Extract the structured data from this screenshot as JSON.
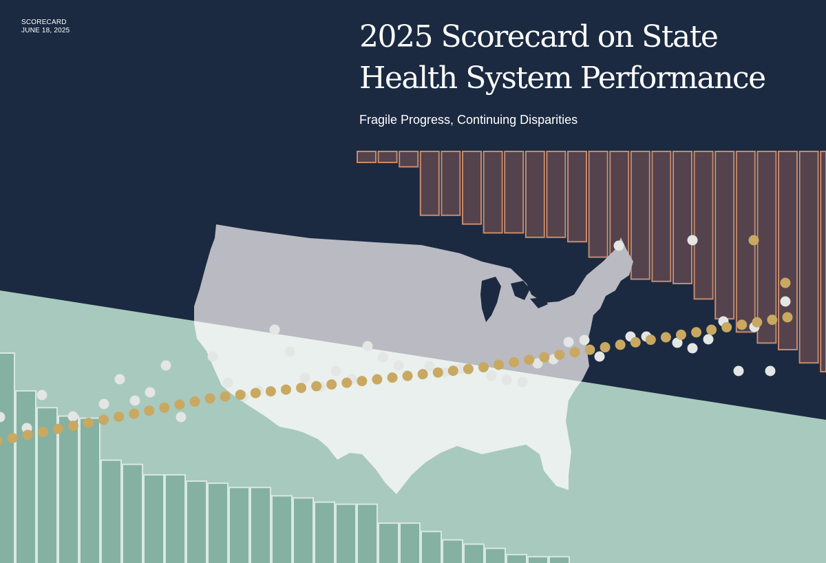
{
  "header": {
    "kicker": "SCORECARD",
    "date": "JUNE 18, 2025",
    "title_line1": "2025 Scorecard on State",
    "title_line2": "Health System Performance",
    "subtitle": "Fragile Progress, Continuing Disparities"
  },
  "colors": {
    "navy_background": "#1b2a41",
    "mint_background": "#a8c9bd",
    "mint_bar_fill": "#85b1a2",
    "mauve_bar_fill": "#54434d",
    "copper_bar_outline": "#c98a6c",
    "gold_dot": "#c9a862",
    "white_dot": "#e3e6e4",
    "map_upper": "#babac2",
    "map_lower": "#eaf0ed"
  },
  "artwork": {
    "description_icons": [
      "us-map-silhouette",
      "decorative-bar-chart",
      "decorative-dot-trend"
    ],
    "top_bar_levels": [
      0.05,
      0.05,
      0.07,
      0.29,
      0.29,
      0.33,
      0.37,
      0.37,
      0.39,
      0.39,
      0.41,
      0.48,
      0.53,
      0.58,
      0.59,
      0.6,
      0.67,
      0.76,
      0.82,
      0.87,
      0.9,
      0.96,
      1.0
    ],
    "bottom_bar_levels": [
      1.0,
      0.82,
      0.74,
      0.7,
      0.69,
      0.49,
      0.47,
      0.42,
      0.42,
      0.39,
      0.38,
      0.36,
      0.36,
      0.32,
      0.31,
      0.29,
      0.28,
      0.28,
      0.19,
      0.19,
      0.15,
      0.11,
      0.09,
      0.07,
      0.04,
      0.03,
      0.03
    ]
  }
}
